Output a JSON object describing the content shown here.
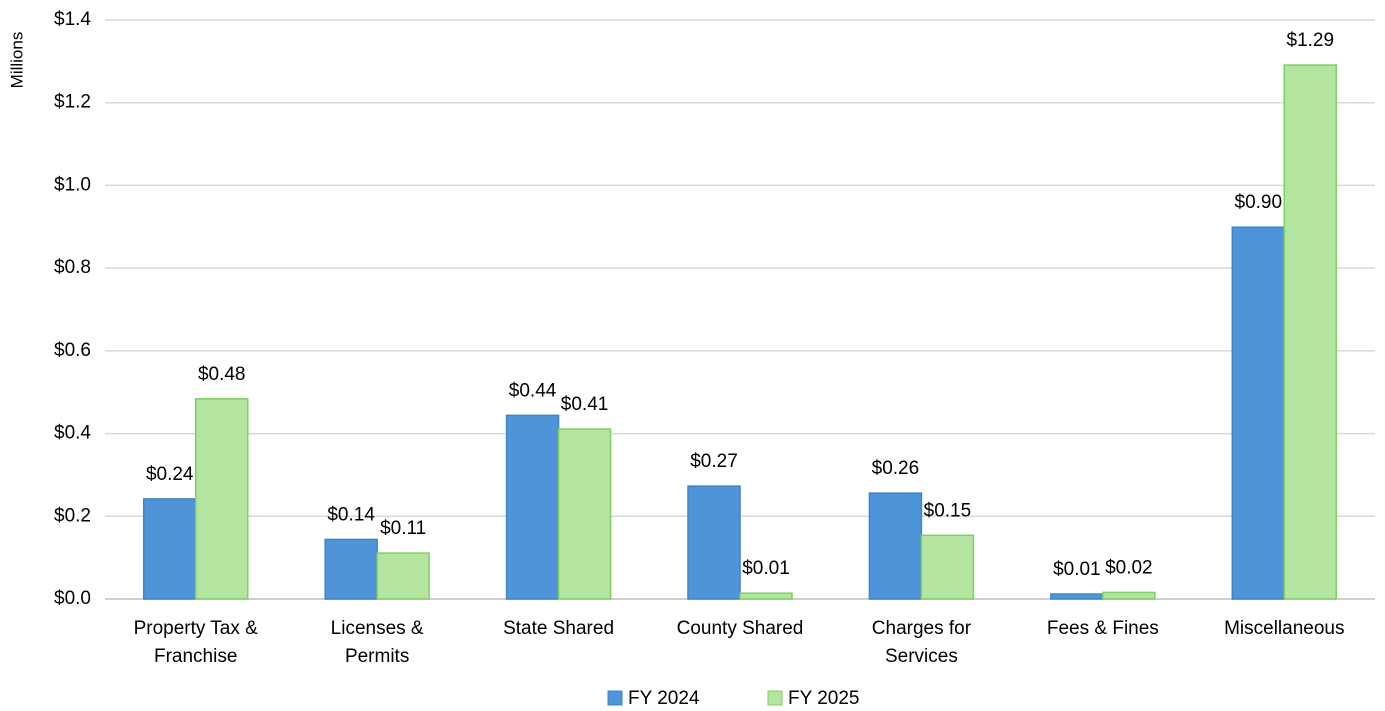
{
  "chart_data": {
    "type": "bar",
    "y_axis_label": "Millions",
    "categories": [
      "Property Tax &\nFranchise",
      "Licenses &\nPermits",
      "State Shared",
      "County Shared",
      "Charges for\nServices",
      "Fees & Fines",
      "Miscellaneous"
    ],
    "series": [
      {
        "name": "FY 2024",
        "color": "#4f94d8",
        "values": [
          0.242,
          0.144,
          0.444,
          0.273,
          0.256,
          0.012,
          0.899
        ],
        "value_labels": [
          "$0.24",
          "$0.14",
          "$0.44",
          "$0.27",
          "$0.26",
          "$0.01",
          "$0.90"
        ]
      },
      {
        "name": "FY 2025",
        "color": "#b3e5a0",
        "values": [
          0.484,
          0.111,
          0.411,
          0.014,
          0.154,
          0.016,
          1.291
        ],
        "value_labels": [
          "$0.48",
          "$0.11",
          "$0.41",
          "$0.01",
          "$0.15",
          "$0.02",
          "$1.29"
        ]
      }
    ],
    "ylim": [
      0,
      1.4
    ],
    "yticks": [
      {
        "value": 0,
        "label": "$0.0"
      },
      {
        "value": 0.2,
        "label": "$0.2"
      },
      {
        "value": 0.4,
        "label": "$0.4"
      },
      {
        "value": 0.6,
        "label": "$0.6"
      },
      {
        "value": 0.8,
        "label": "$0.8"
      },
      {
        "value": 1.0,
        "label": "$1.0"
      },
      {
        "value": 1.2,
        "label": "$1.2"
      },
      {
        "value": 1.4,
        "label": "$1.4"
      }
    ],
    "grid": true,
    "legend": "bottom"
  }
}
